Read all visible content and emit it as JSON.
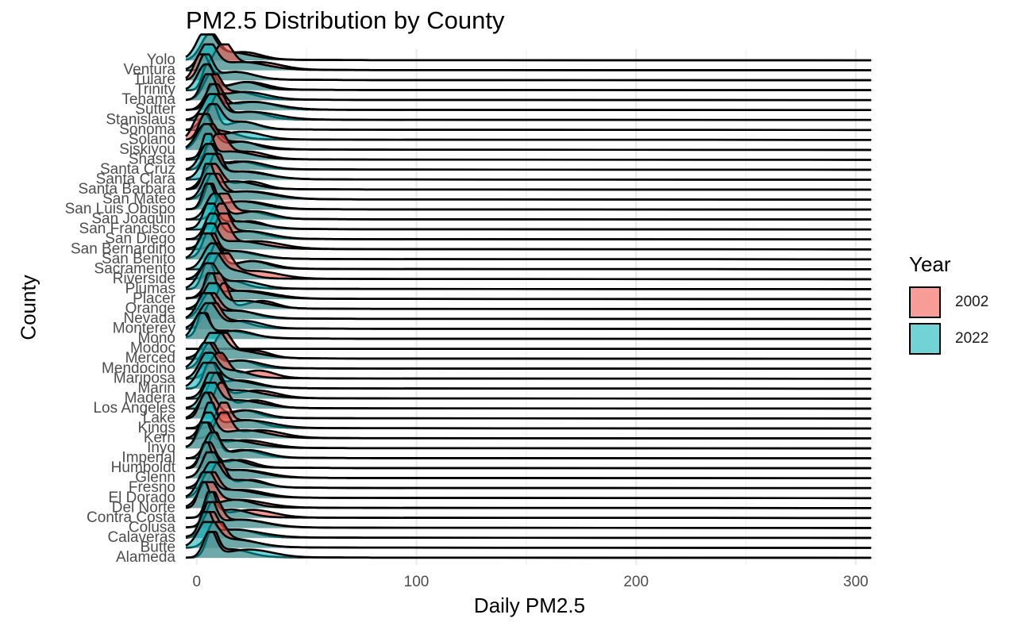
{
  "chart_data": {
    "type": "ridgeline",
    "title": "PM2.5 Distribution by County",
    "xlabel": "Daily PM2.5",
    "ylabel": "County",
    "xlim": [
      -5,
      308
    ],
    "x_ticks": [
      0,
      100,
      200,
      300
    ],
    "line_x_range": [
      -5,
      307
    ],
    "legend": {
      "title": "Year",
      "position": "right",
      "entries": [
        {
          "label": "2002",
          "color": "#F8766D"
        },
        {
          "label": "2022",
          "color": "#00BFC4"
        }
      ]
    },
    "grid": true,
    "counties": [
      "Alameda",
      "Butte",
      "Calaveras",
      "Colusa",
      "Contra Costa",
      "Del Norte",
      "El Dorado",
      "Fresno",
      "Glenn",
      "Humboldt",
      "Imperial",
      "Inyo",
      "Kern",
      "Kings",
      "Lake",
      "Los Angeles",
      "Madera",
      "Marin",
      "Mariposa",
      "Mendocino",
      "Merced",
      "Modoc",
      "Mono",
      "Monterey",
      "Nevada",
      "Orange",
      "Placer",
      "Plumas",
      "Riverside",
      "Sacramento",
      "San Benito",
      "San Bernardino",
      "San Diego",
      "San Francisco",
      "San Joaquin",
      "San Luis Obispo",
      "San Mateo",
      "Santa Barbara",
      "Santa Clara",
      "Santa Cruz",
      "Shasta",
      "Siskiyou",
      "Solano",
      "Sonoma",
      "Stanislaus",
      "Sutter",
      "Tehama",
      "Trinity",
      "Tulare",
      "Ventura",
      "Yolo"
    ],
    "series": [
      {
        "name": "2002",
        "peak_location": [
          7,
          9,
          6,
          8,
          7,
          5,
          6,
          10,
          6,
          5,
          8,
          4,
          12,
          12,
          5,
          11,
          9,
          6,
          10,
          6,
          12,
          null,
          3,
          7,
          6,
          12,
          8,
          5,
          12,
          9,
          6,
          12,
          12,
          11,
          12,
          6,
          8,
          7,
          9,
          6,
          10,
          5,
          2,
          7,
          10,
          8,
          7,
          5,
          2,
          12,
          6
        ]
      },
      {
        "name": "2022",
        "peak_location": [
          6,
          5,
          4,
          6,
          6,
          3,
          4,
          7,
          6,
          4,
          7,
          3,
          5,
          6,
          4,
          6,
          7,
          5,
          5,
          4,
          8,
          null,
          2,
          5,
          4,
          7,
          6,
          5,
          7,
          7,
          4,
          6,
          7,
          6,
          8,
          5,
          6,
          5,
          6,
          5,
          5,
          4,
          4,
          7,
          7,
          7,
          5,
          4,
          4,
          5,
          4
        ]
      }
    ]
  }
}
